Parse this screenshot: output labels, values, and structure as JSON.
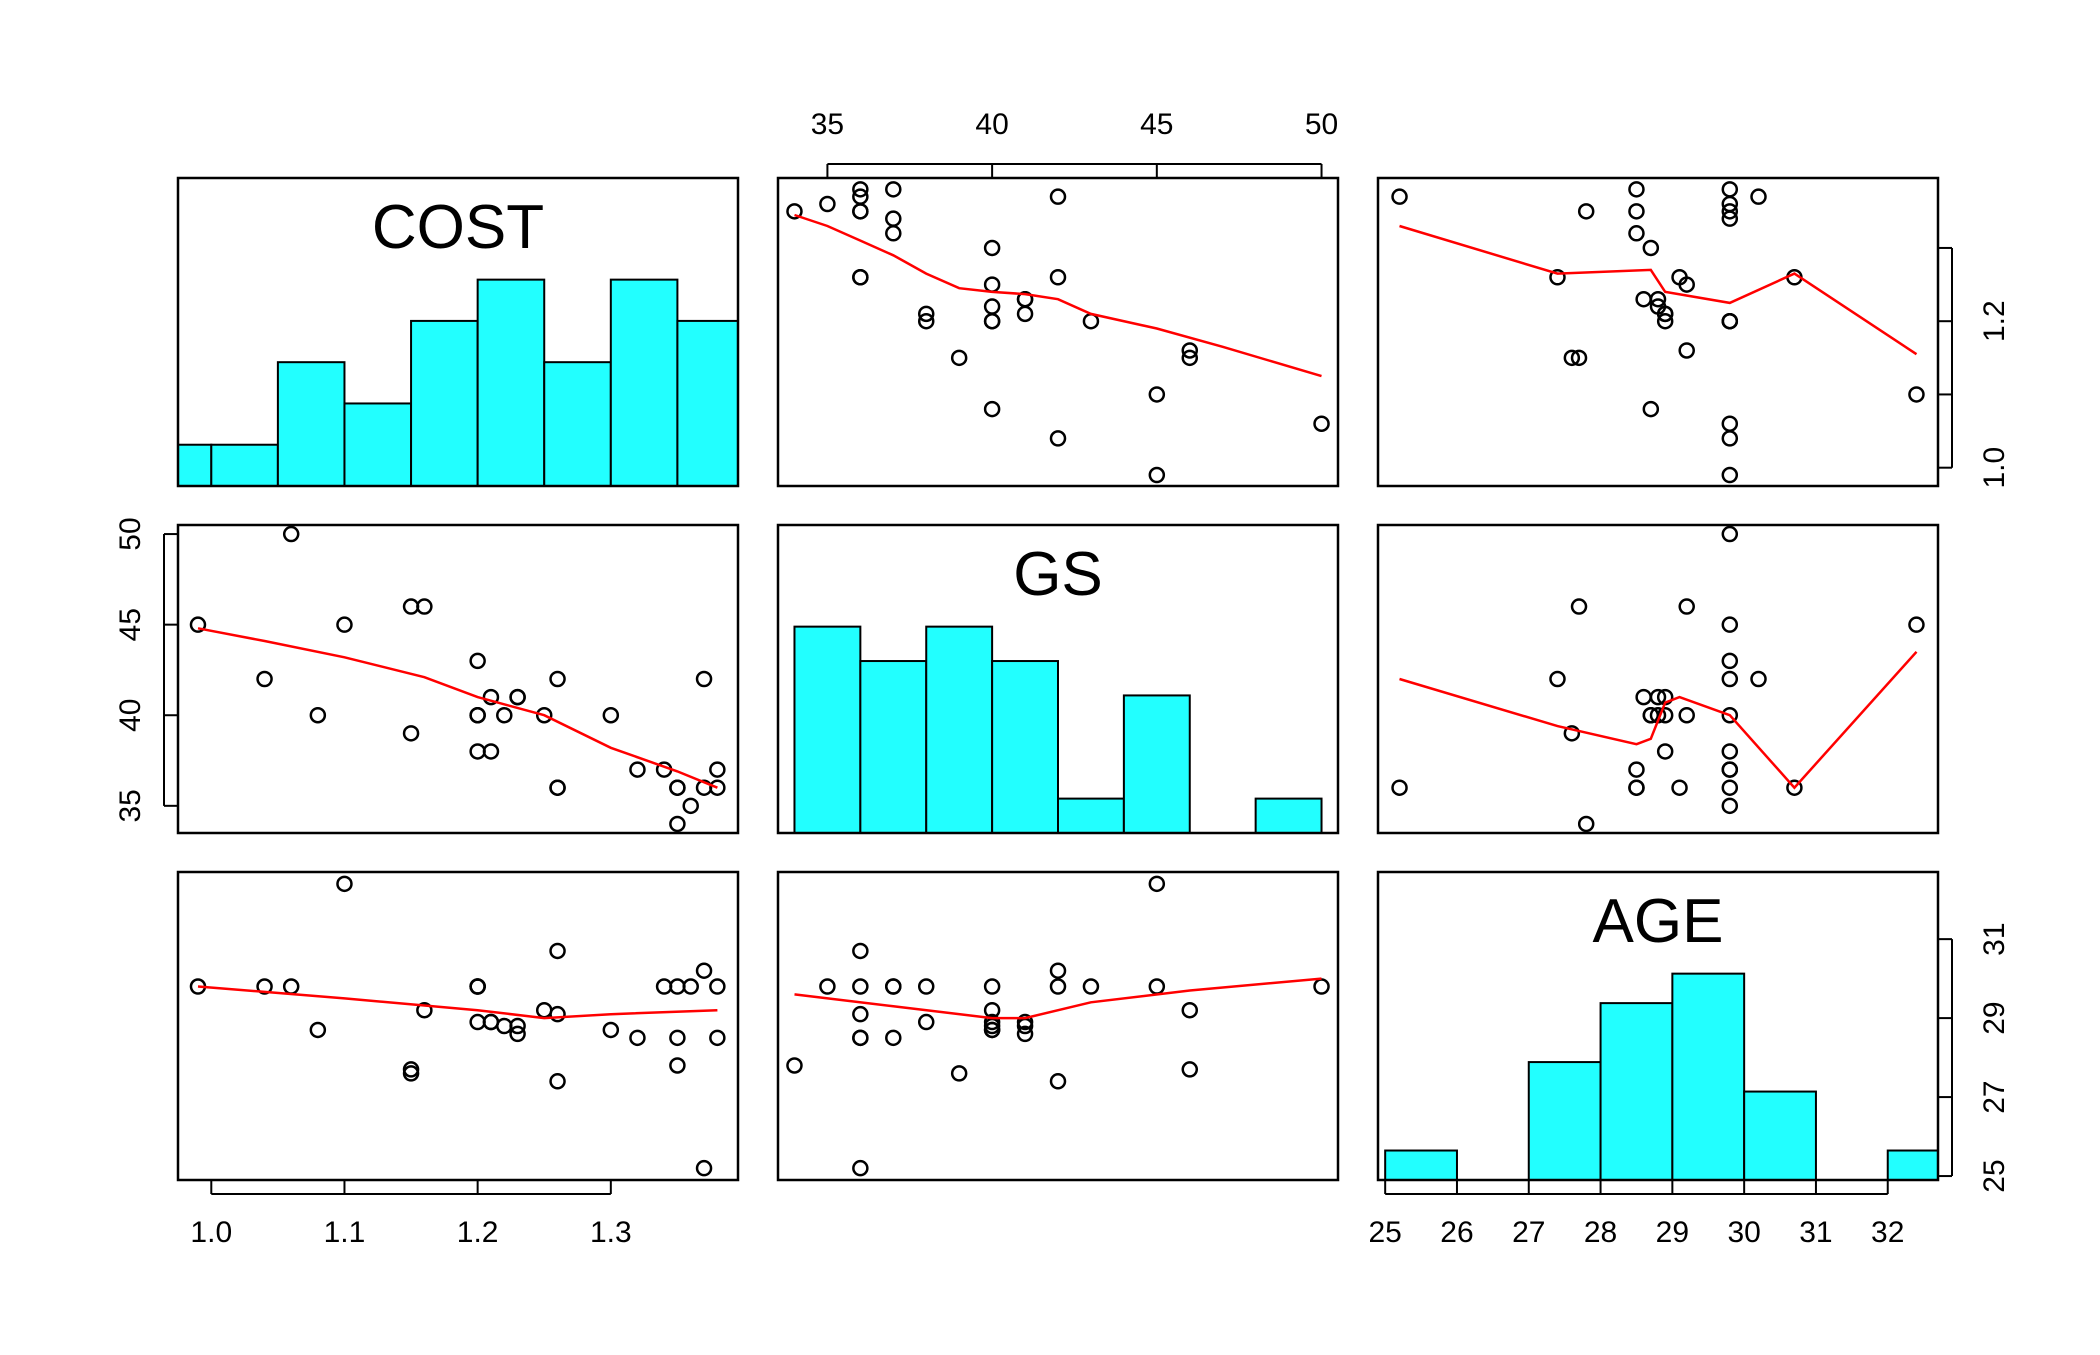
{
  "chart_data": {
    "type": "scatter",
    "layout": "pairs-matrix",
    "variables": [
      {
        "name": "COST",
        "range": [
          0.975,
          1.3955
        ],
        "ticks": [
          1.0,
          1.1,
          1.2,
          1.3
        ],
        "tick_labels": [
          "1.0",
          "1.1",
          "1.2",
          "1.3"
        ]
      },
      {
        "name": "GS",
        "range": [
          33.5,
          50.5
        ],
        "ticks": [
          35,
          40,
          45,
          50
        ],
        "tick_labels": [
          "35",
          "40",
          "45",
          "50"
        ]
      },
      {
        "name": "AGE",
        "range": [
          24.9,
          32.7
        ],
        "ticks": [
          25,
          27,
          29,
          31
        ],
        "tick_labels": [
          "25",
          "27",
          "29",
          "31"
        ],
        "bottom_ticks": [
          25,
          26,
          27,
          28,
          29,
          30,
          31,
          32
        ],
        "bottom_tick_labels": [
          "25",
          "26",
          "27",
          "28",
          "29",
          "30",
          "31",
          "32"
        ]
      }
    ],
    "observations": {
      "COST": [
        1.34,
        1.38,
        1.35,
        1.36,
        1.35,
        1.32,
        1.38,
        1.26,
        1.37,
        1.26,
        1.25,
        1.21,
        1.2,
        1.22,
        1.23,
        1.2,
        1.3,
        1.15,
        1.21,
        1.2,
        1.16,
        1.04,
        1.08,
        1.1,
        1.15,
        1.06,
        0.99,
        1.26,
        1.2,
        1.23,
        1.35,
        1.37
      ],
      "GS": [
        37,
        36,
        34,
        35,
        36,
        37,
        37,
        42,
        42,
        36,
        40,
        41,
        40,
        40,
        41,
        38,
        40,
        39,
        38,
        43,
        46,
        42,
        40,
        45,
        46,
        50,
        45,
        36,
        40,
        41,
        36,
        36
      ],
      "AGE": [
        29.8,
        28.5,
        27.8,
        29.8,
        28.5,
        28.5,
        29.8,
        27.4,
        30.2,
        29.1,
        29.2,
        28.9,
        28.9,
        28.8,
        28.8,
        29.8,
        28.7,
        27.6,
        28.9,
        29.8,
        29.2,
        29.8,
        28.7,
        32.4,
        27.7,
        29.8,
        29.8,
        30.7,
        29.8,
        28.6,
        29.8,
        25.2
      ]
    },
    "lowess": {
      "COST|GS": [
        [
          34,
          1.345
        ],
        [
          35,
          1.33
        ],
        [
          36,
          1.31
        ],
        [
          37,
          1.29
        ],
        [
          38,
          1.265
        ],
        [
          39,
          1.245
        ],
        [
          40,
          1.24
        ],
        [
          41,
          1.237
        ],
        [
          42,
          1.23
        ],
        [
          43,
          1.21
        ],
        [
          45,
          1.19
        ],
        [
          47,
          1.165
        ],
        [
          50,
          1.125
        ]
      ],
      "COST|AGE": [
        [
          25.2,
          1.33
        ],
        [
          27.4,
          1.265
        ],
        [
          28.7,
          1.27
        ],
        [
          28.9,
          1.24
        ],
        [
          29.8,
          1.225
        ],
        [
          30.7,
          1.265
        ],
        [
          32.4,
          1.155
        ]
      ],
      "GS|COST": [
        [
          0.99,
          44.8
        ],
        [
          1.04,
          44.1
        ],
        [
          1.1,
          43.2
        ],
        [
          1.16,
          42.1
        ],
        [
          1.2,
          41.0
        ],
        [
          1.25,
          40.0
        ],
        [
          1.3,
          38.2
        ],
        [
          1.35,
          36.9
        ],
        [
          1.38,
          36.0
        ]
      ],
      "GS|AGE": [
        [
          25.2,
          42.0
        ],
        [
          27.4,
          39.4
        ],
        [
          28.5,
          38.4
        ],
        [
          28.7,
          38.7
        ],
        [
          28.9,
          40.7
        ],
        [
          29.1,
          41.0
        ],
        [
          29.8,
          40.0
        ],
        [
          30.7,
          36.0
        ],
        [
          32.4,
          43.5
        ]
      ],
      "AGE|COST": [
        [
          0.99,
          29.8
        ],
        [
          1.1,
          29.5
        ],
        [
          1.2,
          29.2
        ],
        [
          1.25,
          29.0
        ],
        [
          1.3,
          29.1
        ],
        [
          1.38,
          29.2
        ]
      ],
      "AGE|GS": [
        [
          34,
          29.6
        ],
        [
          37,
          29.3
        ],
        [
          40,
          29.0
        ],
        [
          41,
          29.0
        ],
        [
          43,
          29.4
        ],
        [
          46,
          29.7
        ],
        [
          50,
          30.0
        ]
      ]
    },
    "histograms": {
      "COST": {
        "breaks": [
          0.95,
          1.0,
          1.05,
          1.1,
          1.15,
          1.2,
          1.25,
          1.3,
          1.35,
          1.4
        ],
        "densities": [
          1,
          1,
          3,
          2,
          4,
          5,
          3,
          5,
          4
        ]
      },
      "GS": {
        "breaks": [
          34,
          36,
          38,
          40,
          42,
          44,
          46,
          48,
          50
        ],
        "densities": [
          6,
          5,
          6,
          5,
          1,
          4,
          0,
          1
        ]
      },
      "AGE": {
        "breaks": [
          25,
          26,
          27,
          28,
          29,
          30,
          31,
          32,
          33
        ],
        "densities": [
          1,
          0,
          4,
          6,
          7,
          3,
          0,
          1
        ]
      }
    },
    "colors": {
      "histogram_fill": "#22FFFF",
      "smoother": "#FF0000",
      "points": "#000000"
    }
  }
}
